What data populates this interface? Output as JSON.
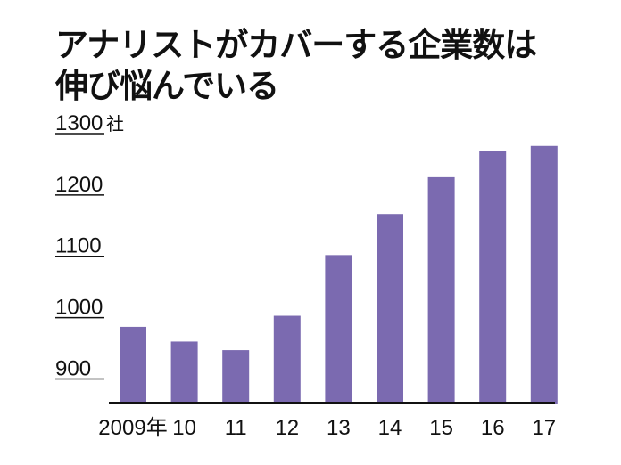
{
  "chart_data": {
    "type": "bar",
    "title": "アナリストがカバーする企業数は伸び悩んでいる",
    "title_lines": [
      "アナリストがカバーする企業数は",
      "伸び悩んでいる"
    ],
    "unit": "社",
    "categories": [
      "2009年",
      "10",
      "11",
      "12",
      "13",
      "14",
      "15",
      "16",
      "17"
    ],
    "values": [
      985,
      961,
      947,
      1003,
      1102,
      1169,
      1229,
      1272,
      1280
    ],
    "yticks": [
      900,
      1000,
      1100,
      1200,
      1300
    ],
    "ylim": [
      860,
      1300
    ],
    "bar_color": "#7b6ab0",
    "grid": false
  }
}
